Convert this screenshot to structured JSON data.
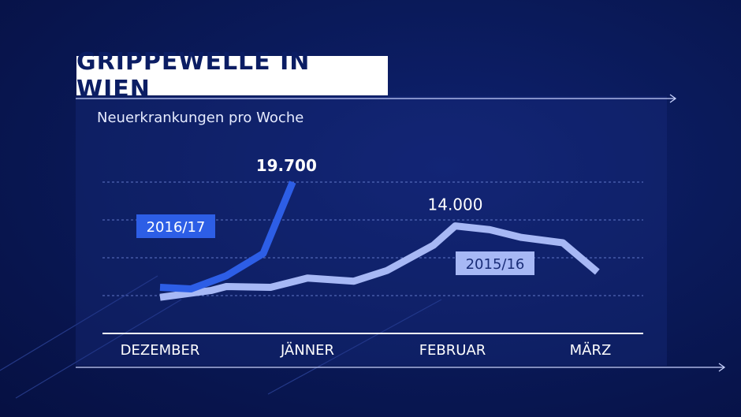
{
  "title": "GRIPPEWELLE IN WIEN",
  "subtitle": "Neuerkrankungen pro Woche",
  "colors": {
    "series_2016_17": "#2d5ee6",
    "series_2015_16": "#a7b8f5",
    "title_text": "#0b1d63",
    "background": "#0a1a5a"
  },
  "chart_data": {
    "type": "line",
    "title": "GRIPPEWELLE IN WIEN",
    "ylabel": "Neuerkrankungen pro Woche",
    "xlabel": "",
    "categories": [
      "DEZEMBER",
      "JÄNNER",
      "FEBRUAR",
      "MÄRZ"
    ],
    "ylim": [
      0,
      19700
    ],
    "grid": true,
    "series": [
      {
        "name": "2016/17",
        "color": "#2d5ee6",
        "x": [
          0,
          0.21,
          0.45,
          0.7,
          0.9
        ],
        "values": [
          6000,
          5800,
          7500,
          10400,
          19700
        ],
        "label": "19.700"
      },
      {
        "name": "2015/16",
        "color": "#a7b8f5",
        "x": [
          0,
          0.35,
          0.45,
          0.75,
          1.0,
          1.32,
          1.55,
          1.87,
          2.02,
          2.27,
          2.5,
          2.8,
          3.05
        ],
        "values": [
          4700,
          5600,
          6100,
          6000,
          7200,
          6800,
          8200,
          11500,
          14000,
          13500,
          12500,
          11800,
          8000
        ],
        "label": "14.000"
      }
    ]
  }
}
